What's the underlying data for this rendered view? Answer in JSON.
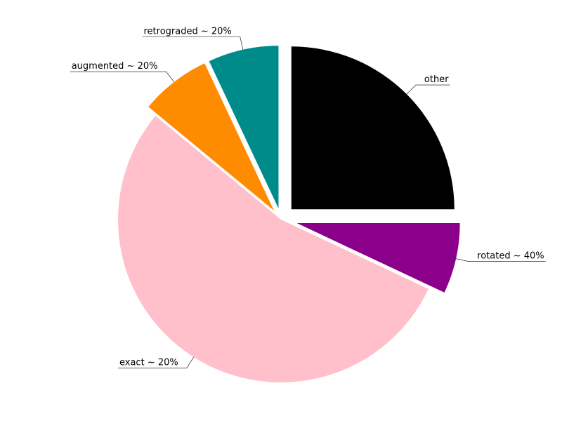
{
  "chart_data": {
    "type": "pie",
    "title": "",
    "legend": "none",
    "slices": [
      {
        "label": "other",
        "value": 25.0,
        "color": "#000000",
        "explode": 0.09
      },
      {
        "label": "rotated ~ 40%",
        "value": 7.0,
        "color": "#8b008b",
        "explode": 0.1
      },
      {
        "label": "exact ~ 20%",
        "value": 54.0,
        "color": "#ffc0cb",
        "explode": 0.0
      },
      {
        "label": "augmented ~ 20%",
        "value": 7.0,
        "color": "#ff8c00",
        "explode": 0.07
      },
      {
        "label": "retrograded ~ 20%",
        "value": 7.0,
        "color": "#008b8b",
        "explode": 0.07
      }
    ],
    "start_angle_deg": 90,
    "direction": "clockwise"
  }
}
